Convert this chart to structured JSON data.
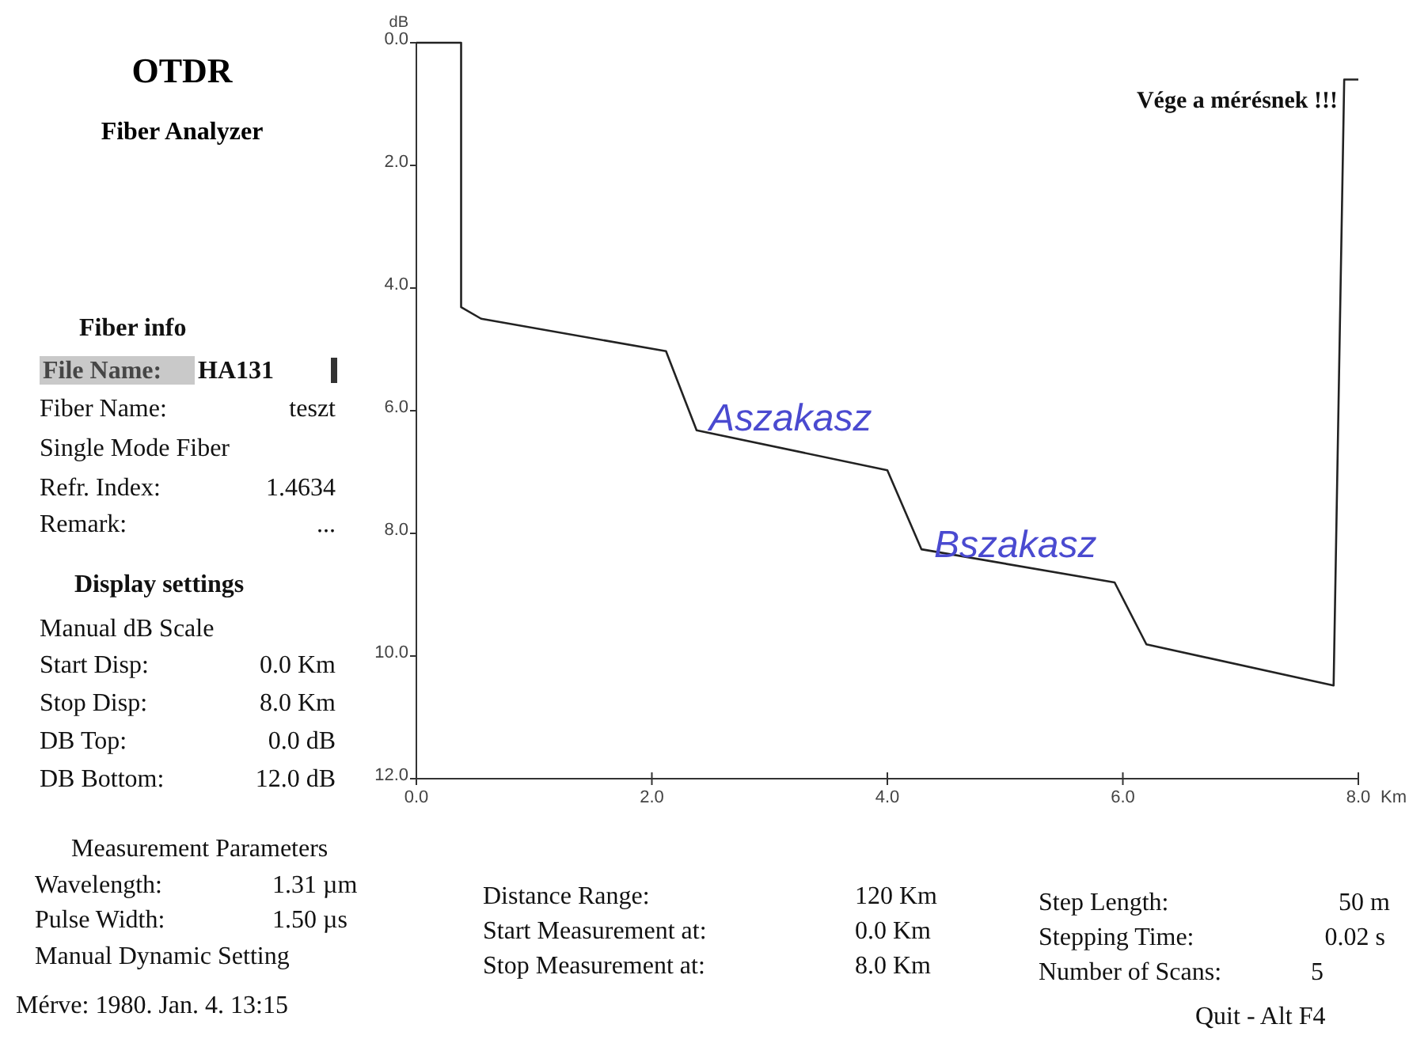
{
  "chart_data": {
    "type": "line",
    "title": "OTDR",
    "subtitle": "Fiber Analyzer",
    "xlabel": "Km",
    "ylabel": "dB",
    "x": [
      0,
      0.38,
      0.38,
      0.55,
      2.12,
      2.38,
      4.0,
      4.29,
      5.93,
      6.2,
      7.79,
      7.88,
      8.0
    ],
    "series": [
      {
        "color": "#222222",
        "values": [
          0,
          0,
          4.31,
          4.5,
          5.03,
          6.32,
          6.97,
          8.26,
          8.8,
          9.81,
          10.48,
          0.6,
          0.6
        ]
      }
    ],
    "xlim": [
      0,
      8
    ],
    "xticks": [
      {
        "value": 0,
        "label": "0.0"
      },
      {
        "value": 2,
        "label": "2.0"
      },
      {
        "value": 4,
        "label": "4.0"
      },
      {
        "value": 6,
        "label": "6.0"
      },
      {
        "value": 8,
        "label": "8.0"
      }
    ],
    "ylim": [
      12,
      0
    ],
    "yticks": [
      {
        "value": 0,
        "label": "0.0"
      },
      {
        "value": 2,
        "label": "2.0"
      },
      {
        "value": 4,
        "label": "4.0"
      },
      {
        "value": 6,
        "label": "6.0"
      },
      {
        "value": 8,
        "label": "8.0"
      },
      {
        "value": 10,
        "label": "10.0"
      },
      {
        "value": 12,
        "label": "12.0"
      }
    ],
    "grid": false,
    "marker": "none",
    "line_style": "solid",
    "annotations": [
      "Fiber info",
      "File Name:",
      "HA131",
      "Fiber Name:",
      "teszt",
      "Single Mode Fiber",
      "Refr. Index:",
      "1.4634",
      "Remark:",
      "...",
      "Display settings",
      "Manual dB Scale",
      "Start Disp:",
      "0.0 Km",
      "Stop Disp:",
      "8.0 Km",
      "DB Top:",
      "0.0 dB",
      "DB Bottom:",
      "12.0 dB",
      "Measurement Parameters",
      "Wavelength:",
      "1.31 µm",
      "Pulse Width:",
      "1.50 µs",
      "Manual Dynamic Setting",
      "Mérve: 1980. Jan. 4.  13:15",
      "Distance Range:",
      "120 Km",
      "Start Measurement at:",
      "0.0 Km",
      "Stop Measurement at:",
      "8.0 Km",
      "Step Length:",
      "50 m",
      "Stepping Time:",
      "0.02 s",
      "Number of Scans:",
      "5",
      "Quit - Alt F4",
      "Vége a mérésnek !!!",
      "Aszakasz",
      "Bszakasz"
    ]
  }
}
